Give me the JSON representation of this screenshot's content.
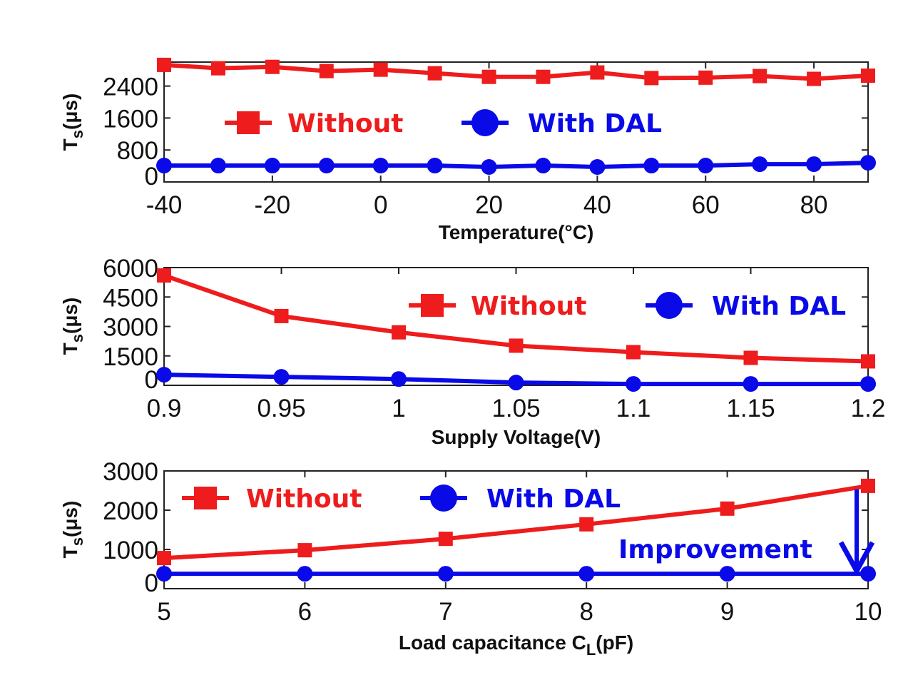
{
  "colors": {
    "without": "#ee1c1c",
    "with_dal": "#0a0ae8",
    "axis": "#111111"
  },
  "legend_labels": {
    "without": "Without",
    "with_dal": "With DAL"
  },
  "chart_data": [
    {
      "type": "line",
      "xlabel": "Temperature(°C)",
      "ylabel": "Ts(μs)",
      "ylabel_main": "T",
      "ylabel_sub": "s",
      "ylabel_rest": "(μs)",
      "xlim": [
        -40,
        90
      ],
      "ylim": [
        0,
        3000
      ],
      "xticks": [
        -40,
        -20,
        0,
        20,
        40,
        60,
        80
      ],
      "yticks": [
        0,
        800,
        1600,
        2400
      ],
      "x": [
        -40,
        -30,
        -20,
        -10,
        0,
        10,
        20,
        30,
        40,
        50,
        60,
        70,
        80,
        90
      ],
      "series": [
        {
          "name": "Without",
          "marker": "square",
          "values": [
            2930,
            2845,
            2880,
            2775,
            2810,
            2720,
            2630,
            2630,
            2740,
            2600,
            2610,
            2650,
            2580,
            2660
          ]
        },
        {
          "name": "With DAL",
          "marker": "circle",
          "values": [
            410,
            410,
            410,
            410,
            410,
            410,
            375,
            410,
            375,
            410,
            410,
            445,
            445,
            480
          ]
        }
      ],
      "legend": "center",
      "grid": false
    },
    {
      "type": "line",
      "xlabel": "Supply Voltage(V)",
      "ylabel": "Ts(μs)",
      "ylabel_main": "T",
      "ylabel_sub": "s",
      "ylabel_rest": "(μs)",
      "xlim": [
        0.9,
        1.2
      ],
      "ylim": [
        0,
        6000
      ],
      "xticks": [
        0.9,
        0.95,
        1,
        1.05,
        1.1,
        1.15,
        1.2
      ],
      "xtick_labels": [
        "0.9",
        "0.95",
        "1",
        "1.05",
        "1.1",
        "1.15",
        "1.2"
      ],
      "yticks": [
        0,
        1500,
        3000,
        4500,
        6000
      ],
      "x": [
        0.9,
        0.95,
        1,
        1.05,
        1.1,
        1.15,
        1.2
      ],
      "series": [
        {
          "name": "Without",
          "marker": "square",
          "values": [
            5600,
            3530,
            2700,
            2020,
            1690,
            1400,
            1220
          ]
        },
        {
          "name": "With DAL",
          "marker": "circle",
          "values": [
            540,
            430,
            320,
            140,
            70,
            70,
            70
          ]
        }
      ],
      "legend": "upper-right",
      "grid": false
    },
    {
      "type": "line",
      "xlabel": "Load capacitance C",
      "xlabel_sub": "L",
      "xlabel_rest": "(pF)",
      "ylabel": "Ts(μs)",
      "ylabel_main": "T",
      "ylabel_sub": "s",
      "ylabel_rest": "(μs)",
      "xlim": [
        5,
        10
      ],
      "ylim": [
        0,
        3000
      ],
      "xticks": [
        5,
        6,
        7,
        8,
        9,
        10
      ],
      "yticks": [
        0,
        1000,
        2000,
        3000
      ],
      "x": [
        5,
        6,
        7,
        8,
        9,
        10
      ],
      "series": [
        {
          "name": "Without",
          "marker": "square",
          "values": [
            780,
            980,
            1270,
            1640,
            2040,
            2620
          ]
        },
        {
          "name": "With DAL",
          "marker": "circle",
          "values": [
            380,
            380,
            380,
            380,
            380,
            380
          ]
        }
      ],
      "annotation": {
        "text": "Improvement",
        "arrow_from": [
          10,
          2620
        ],
        "arrow_to": [
          10,
          380
        ]
      },
      "legend": "upper-left",
      "grid": false
    }
  ]
}
